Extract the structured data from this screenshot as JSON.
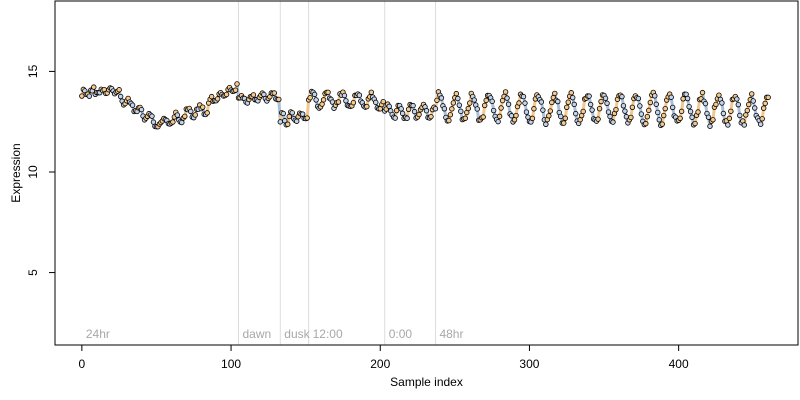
{
  "chart_data": {
    "type": "scatter",
    "title": "",
    "xlabel": "Sample index",
    "ylabel": "Expression",
    "xlim": [
      -18,
      480
    ],
    "ylim": [
      1.4,
      18.5
    ],
    "xticks": [
      0,
      100,
      200,
      300,
      400
    ],
    "yticks": [
      5,
      10,
      15
    ],
    "grid": false,
    "legend": "none",
    "colors": {
      "trace_warm": "#f0c890",
      "trace_cool": "#aabfd8",
      "point_warm": "#f7c98a",
      "point_cool": "#c3d3ea",
      "point_edge": "#000000",
      "vline": "#dcdcdc",
      "annotation": "#a8a8a8"
    },
    "annotations": [
      {
        "x": 0,
        "label": "24hr",
        "line": false
      },
      {
        "x": 105,
        "label": "dawn",
        "line": true
      },
      {
        "x": 133,
        "label": "dusk",
        "line": true
      },
      {
        "x": 152,
        "label": "12:00",
        "line": true
      },
      {
        "x": 203,
        "label": "0:00",
        "line": true
      },
      {
        "x": 237,
        "label": "48hr",
        "line": true
      }
    ],
    "segments": [
      {
        "from": 0,
        "to": 22,
        "start": 13.9,
        "end": 14.1,
        "amp": 0.15,
        "period": 6,
        "jitter": 0.25
      },
      {
        "from": 23,
        "to": 52,
        "start": 13.9,
        "end": 12.3,
        "amp": 0.2,
        "period": 7,
        "jitter": 0.25
      },
      {
        "from": 53,
        "to": 84,
        "start": 12.4,
        "end": 13.2,
        "amp": 0.25,
        "period": 8,
        "jitter": 0.25
      },
      {
        "from": 85,
        "to": 104,
        "start": 13.5,
        "end": 14.2,
        "amp": 0.15,
        "period": 6,
        "jitter": 0.2
      },
      {
        "from": 105,
        "to": 132,
        "start": 13.6,
        "end": 13.8,
        "amp": 0.15,
        "period": 7,
        "jitter": 0.2
      },
      {
        "from": 133,
        "to": 151,
        "start": 12.6,
        "end": 12.8,
        "amp": 0.3,
        "period": 6,
        "jitter": 0.3
      },
      {
        "from": 152,
        "to": 202,
        "start": 13.6,
        "end": 13.5,
        "amp": 0.35,
        "period": 10,
        "jitter": 0.25
      },
      {
        "from": 203,
        "to": 236,
        "start": 13.0,
        "end": 13.0,
        "amp": 0.35,
        "period": 8,
        "jitter": 0.25
      },
      {
        "from": 237,
        "to": 460,
        "start": 13.2,
        "end": 13.1,
        "amp": 0.7,
        "period": 11,
        "jitter": 0.3
      }
    ]
  }
}
